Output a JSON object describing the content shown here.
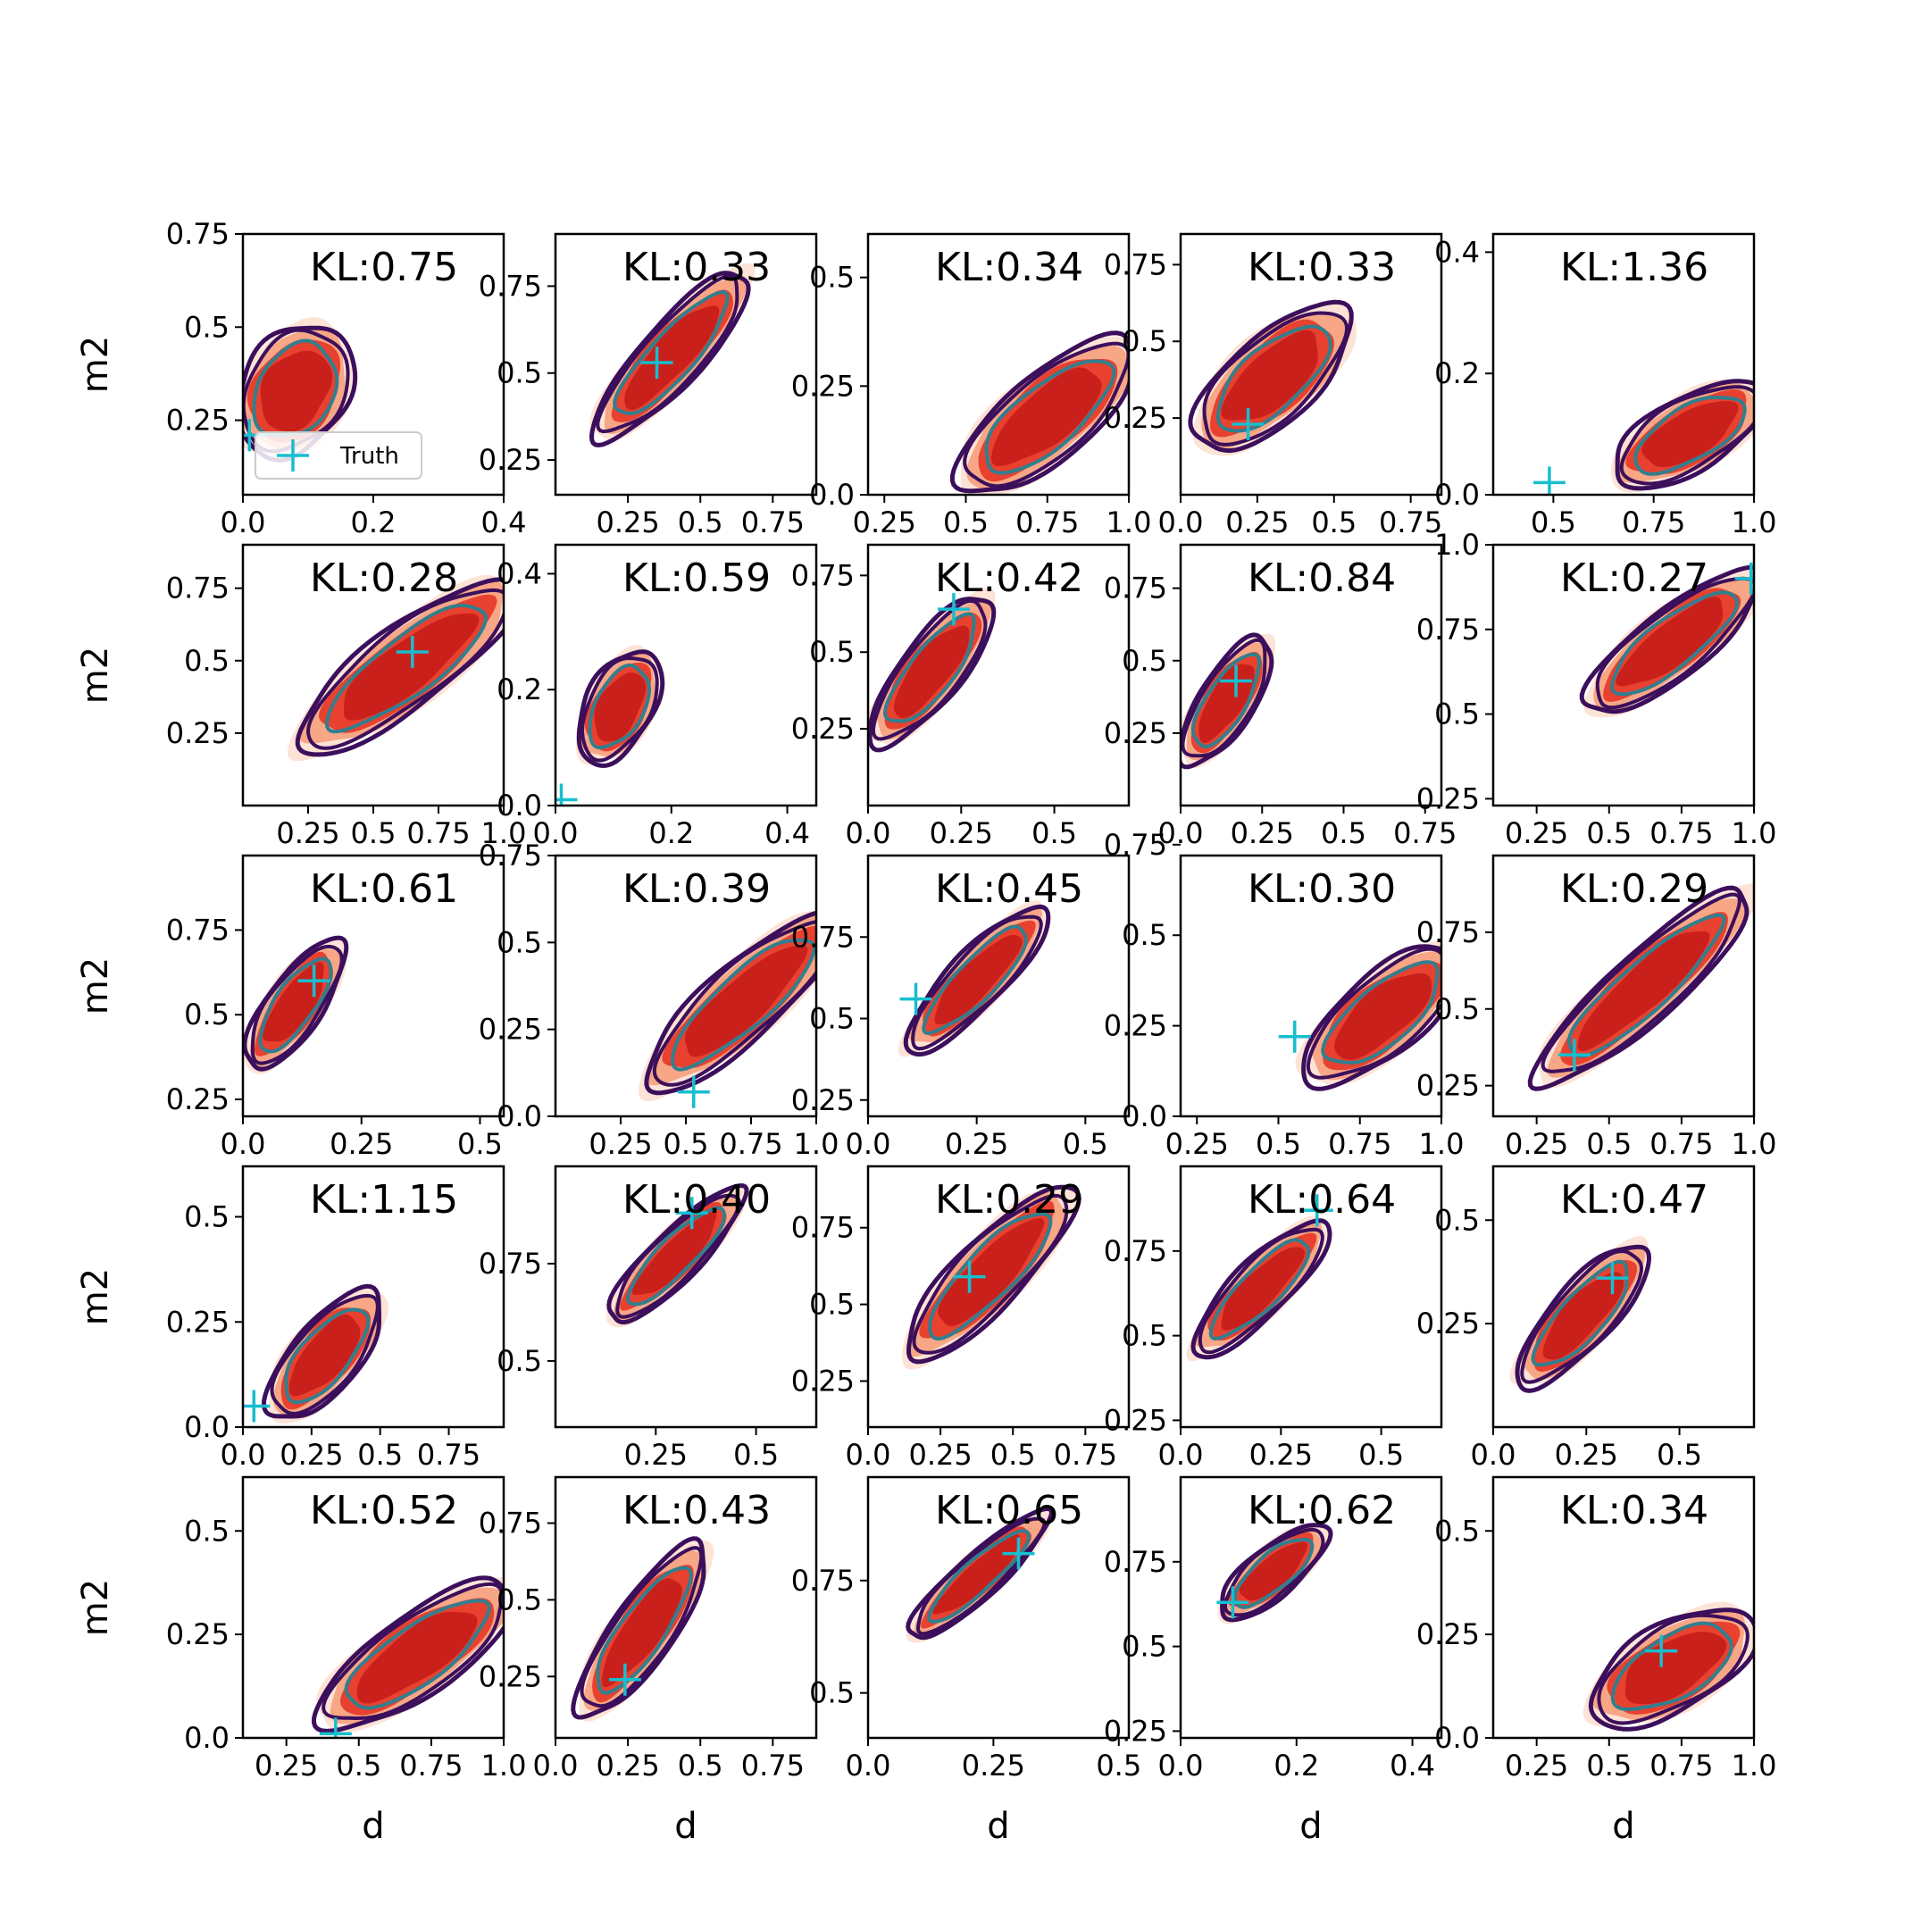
{
  "chart_data": {
    "type": "contour-grid",
    "rows": 5,
    "cols": 5,
    "xlabel": "d",
    "ylabel": "m2",
    "legend": {
      "label": "Truth",
      "marker": "+",
      "placement": "lower-left",
      "panel": 0
    },
    "colors": {
      "fill_outer": "#fde3d6",
      "fill_mid": "#f7a686",
      "fill_inner": "#e8412f",
      "fill_core": "#c9201c",
      "contour_outer": "#3c0f5c",
      "contour_inner": "#317f8f",
      "truth": "#17becf"
    },
    "panels": [
      {
        "kl": "KL:0.75",
        "xlim": [
          0.0,
          0.4
        ],
        "xticks": [
          0.0,
          0.2,
          0.4
        ],
        "ylim": [
          0.05,
          0.75
        ],
        "yticks": [
          0.25,
          0.5,
          0.75
        ],
        "truth": [
          0.01,
          0.21
        ],
        "center": [
          0.08,
          0.33
        ],
        "angle": 58,
        "rx": 0.23,
        "ry": 0.17,
        "showXlabel": false,
        "showYlabel": true
      },
      {
        "kl": "KL:0.33",
        "xlim": [
          0.0,
          0.9
        ],
        "xticks": [
          0.25,
          0.5,
          0.75
        ],
        "ylim": [
          0.15,
          0.9
        ],
        "yticks": [
          0.25,
          0.5,
          0.75
        ],
        "truth": [
          0.35,
          0.53
        ],
        "center": [
          0.4,
          0.55
        ],
        "angle": 48,
        "rx": 0.36,
        "ry": 0.1,
        "showXlabel": false,
        "showYlabel": false
      },
      {
        "kl": "KL:0.34",
        "xlim": [
          0.2,
          1.0
        ],
        "xticks": [
          0.25,
          0.5,
          0.75,
          1.0
        ],
        "ylim": [
          0.0,
          0.6
        ],
        "yticks": [
          0.0,
          0.25,
          0.5
        ],
        "truth": null,
        "center": [
          0.75,
          0.18
        ],
        "angle": 40,
        "rx": 0.36,
        "ry": 0.14,
        "showXlabel": false,
        "showYlabel": false
      },
      {
        "kl": "KL:0.33",
        "xlim": [
          0.0,
          0.85
        ],
        "xticks": [
          0.0,
          0.25,
          0.5,
          0.75
        ],
        "ylim": [
          0.0,
          0.85
        ],
        "yticks": [
          0.25,
          0.5,
          0.75
        ],
        "truth": [
          0.22,
          0.23
        ],
        "center": [
          0.3,
          0.38
        ],
        "angle": 42,
        "rx": 0.32,
        "ry": 0.14,
        "showXlabel": false,
        "showYlabel": false
      },
      {
        "kl": "KL:1.36",
        "xlim": [
          0.35,
          1.0
        ],
        "xticks": [
          0.5,
          0.75,
          1.0
        ],
        "ylim": [
          0.0,
          0.43
        ],
        "yticks": [
          0.0,
          0.2,
          0.4
        ],
        "truth": [
          0.49,
          0.02
        ],
        "center": [
          0.84,
          0.1
        ],
        "angle": 30,
        "rx": 0.28,
        "ry": 0.12,
        "showXlabel": false,
        "showYlabel": false
      },
      {
        "kl": "KL:0.28",
        "xlim": [
          0.0,
          1.0
        ],
        "xticks": [
          0.25,
          0.5,
          0.75,
          1.0
        ],
        "ylim": [
          0.0,
          0.9
        ],
        "yticks": [
          0.25,
          0.5,
          0.75
        ],
        "truth": [
          0.65,
          0.53
        ],
        "center": [
          0.63,
          0.48
        ],
        "angle": 37,
        "rx": 0.44,
        "ry": 0.13,
        "showXlabel": false,
        "showYlabel": true
      },
      {
        "kl": "KL:0.59",
        "xlim": [
          0.0,
          0.45
        ],
        "xticks": [
          0.0,
          0.2,
          0.4
        ],
        "ylim": [
          0.0,
          0.45
        ],
        "yticks": [
          0.0,
          0.2,
          0.4
        ],
        "truth": [
          0.01,
          0.01
        ],
        "center": [
          0.11,
          0.17
        ],
        "angle": 62,
        "rx": 0.2,
        "ry": 0.11,
        "showXlabel": false,
        "showYlabel": false
      },
      {
        "kl": "KL:0.42",
        "xlim": [
          0.0,
          0.7
        ],
        "xticks": [
          0.0,
          0.25,
          0.5
        ],
        "ylim": [
          0.0,
          0.85
        ],
        "yticks": [
          0.25,
          0.5,
          0.75
        ],
        "truth": [
          0.23,
          0.64
        ],
        "center": [
          0.17,
          0.44
        ],
        "angle": 52,
        "rx": 0.3,
        "ry": 0.1,
        "showXlabel": false,
        "showYlabel": false
      },
      {
        "kl": "KL:0.84",
        "xlim": [
          0.0,
          0.8
        ],
        "xticks": [
          0.0,
          0.25,
          0.5,
          0.75
        ],
        "ylim": [
          0.0,
          0.9
        ],
        "yticks": [
          0.25,
          0.5,
          0.75
        ],
        "truth": [
          0.17,
          0.43
        ],
        "center": [
          0.14,
          0.36
        ],
        "angle": 58,
        "rx": 0.24,
        "ry": 0.09,
        "showXlabel": false,
        "showYlabel": false
      },
      {
        "kl": "KL:0.27",
        "xlim": [
          0.1,
          1.0
        ],
        "xticks": [
          0.25,
          0.5,
          0.75,
          1.0
        ],
        "ylim": [
          0.23,
          1.0
        ],
        "yticks": [
          0.25,
          0.5,
          0.75,
          1.0
        ],
        "truth": [
          0.99,
          0.9
        ],
        "center": [
          0.72,
          0.71
        ],
        "angle": 38,
        "rx": 0.35,
        "ry": 0.11,
        "showXlabel": false,
        "showYlabel": false
      },
      {
        "kl": "KL:0.61",
        "xlim": [
          0.0,
          0.55
        ],
        "xticks": [
          0.0,
          0.25,
          0.5
        ],
        "ylim": [
          0.2,
          0.97
        ],
        "yticks": [
          0.25,
          0.5,
          0.75
        ],
        "truth": [
          0.15,
          0.6
        ],
        "center": [
          0.11,
          0.53
        ],
        "angle": 55,
        "rx": 0.25,
        "ry": 0.09,
        "showXlabel": false,
        "showYlabel": true
      },
      {
        "kl": "KL:0.39",
        "xlim": [
          0.0,
          1.0
        ],
        "xticks": [
          0.25,
          0.5,
          0.75,
          1.0
        ],
        "ylim": [
          0.0,
          0.75
        ],
        "yticks": [
          0.0,
          0.25,
          0.5,
          0.75
        ],
        "truth": [
          0.53,
          0.07
        ],
        "center": [
          0.72,
          0.33
        ],
        "angle": 42,
        "rx": 0.42,
        "ry": 0.12,
        "showXlabel": false,
        "showYlabel": false
      },
      {
        "kl": "KL:0.45",
        "xlim": [
          0.0,
          0.6
        ],
        "xticks": [
          0.0,
          0.25,
          0.5
        ],
        "ylim": [
          0.2,
          1.0
        ],
        "yticks": [
          0.25,
          0.5,
          0.75
        ],
        "truth": [
          0.11,
          0.56
        ],
        "center": [
          0.25,
          0.62
        ],
        "angle": 46,
        "rx": 0.32,
        "ry": 0.09,
        "showXlabel": false,
        "showYlabel": false
      },
      {
        "kl": "KL:0.30",
        "xlim": [
          0.2,
          1.0
        ],
        "xticks": [
          0.25,
          0.5,
          0.75,
          1.0
        ],
        "ylim": [
          0.0,
          0.72
        ],
        "yticks": [
          0.0,
          0.25,
          0.5,
          0.75
        ],
        "truth": [
          0.55,
          0.22
        ],
        "center": [
          0.82,
          0.28
        ],
        "angle": 40,
        "rx": 0.32,
        "ry": 0.13,
        "showXlabel": false,
        "showYlabel": false
      },
      {
        "kl": "KL:0.29",
        "xlim": [
          0.1,
          1.0
        ],
        "xticks": [
          0.25,
          0.5,
          0.75,
          1.0
        ],
        "ylim": [
          0.15,
          1.0
        ],
        "yticks": [
          0.25,
          0.5,
          0.75
        ],
        "truth": [
          0.38,
          0.35
        ],
        "center": [
          0.62,
          0.57
        ],
        "angle": 42,
        "rx": 0.46,
        "ry": 0.11,
        "showXlabel": false,
        "showYlabel": false
      },
      {
        "kl": "KL:1.15",
        "xlim": [
          0.0,
          0.95
        ],
        "xticks": [
          0.0,
          0.25,
          0.5,
          0.75
        ],
        "ylim": [
          0.0,
          0.62
        ],
        "yticks": [
          0.0,
          0.25,
          0.5
        ],
        "truth": [
          0.04,
          0.05
        ],
        "center": [
          0.3,
          0.17
        ],
        "angle": 50,
        "rx": 0.26,
        "ry": 0.11,
        "showXlabel": false,
        "showYlabel": true
      },
      {
        "kl": "KL:0.40",
        "xlim": [
          0.0,
          0.65
        ],
        "xticks": [
          0.25,
          0.5
        ],
        "ylim": [
          0.33,
          1.0
        ],
        "yticks": [
          0.5,
          0.75
        ],
        "truth": [
          0.34,
          0.88
        ],
        "center": [
          0.3,
          0.77
        ],
        "angle": 45,
        "rx": 0.3,
        "ry": 0.08,
        "showXlabel": false,
        "showYlabel": false
      },
      {
        "kl": "KL:0.29",
        "xlim": [
          0.0,
          0.9
        ],
        "xticks": [
          0.0,
          0.25,
          0.5,
          0.75
        ],
        "ylim": [
          0.1,
          0.95
        ],
        "yticks": [
          0.25,
          0.5,
          0.75
        ],
        "truth": [
          0.35,
          0.59
        ],
        "center": [
          0.42,
          0.6
        ],
        "angle": 46,
        "rx": 0.38,
        "ry": 0.11,
        "showXlabel": false,
        "showYlabel": false
      },
      {
        "kl": "KL:0.64",
        "xlim": [
          0.0,
          0.65
        ],
        "xticks": [
          0.0,
          0.25,
          0.5
        ],
        "ylim": [
          0.23,
          1.0
        ],
        "yticks": [
          0.25,
          0.5,
          0.75
        ],
        "truth": [
          0.34,
          0.87
        ],
        "center": [
          0.2,
          0.64
        ],
        "angle": 45,
        "rx": 0.3,
        "ry": 0.09,
        "showXlabel": false,
        "showYlabel": false
      },
      {
        "kl": "KL:0.47",
        "xlim": [
          0.0,
          0.7
        ],
        "xticks": [
          0.0,
          0.25,
          0.5
        ],
        "ylim": [
          0.0,
          0.63
        ],
        "yticks": [
          0.25,
          0.5
        ],
        "truth": [
          0.32,
          0.36
        ],
        "center": [
          0.24,
          0.27
        ],
        "angle": 48,
        "rx": 0.3,
        "ry": 0.1,
        "showXlabel": false,
        "showYlabel": false
      },
      {
        "kl": "KL:0.52",
        "xlim": [
          0.1,
          1.0
        ],
        "xticks": [
          0.25,
          0.5,
          0.75,
          1.0
        ],
        "ylim": [
          0.0,
          0.63
        ],
        "yticks": [
          0.0,
          0.25,
          0.5
        ],
        "truth": [
          0.42,
          0.01
        ],
        "center": [
          0.7,
          0.2
        ],
        "angle": 35,
        "rx": 0.38,
        "ry": 0.13,
        "showXlabel": true,
        "showYlabel": true
      },
      {
        "kl": "KL:0.43",
        "xlim": [
          0.0,
          0.9
        ],
        "xticks": [
          0.0,
          0.25,
          0.5,
          0.75
        ],
        "ylim": [
          0.05,
          0.9
        ],
        "yticks": [
          0.25,
          0.5,
          0.75
        ],
        "truth": [
          0.24,
          0.24
        ],
        "center": [
          0.3,
          0.4
        ],
        "angle": 55,
        "rx": 0.34,
        "ry": 0.1,
        "showXlabel": true,
        "showYlabel": false
      },
      {
        "kl": "KL:0.65",
        "xlim": [
          0.0,
          0.52
        ],
        "xticks": [
          0.0,
          0.25,
          0.5
        ],
        "ylim": [
          0.4,
          0.98
        ],
        "yticks": [
          0.5,
          0.75
        ],
        "truth": [
          0.3,
          0.81
        ],
        "center": [
          0.22,
          0.76
        ],
        "angle": 42,
        "rx": 0.3,
        "ry": 0.07,
        "showXlabel": true,
        "showYlabel": false
      },
      {
        "kl": "KL:0.62",
        "xlim": [
          0.0,
          0.45
        ],
        "xticks": [
          0.0,
          0.2,
          0.4
        ],
        "ylim": [
          0.23,
          1.0
        ],
        "yticks": [
          0.25,
          0.5,
          0.75
        ],
        "truth": [
          0.09,
          0.63
        ],
        "center": [
          0.16,
          0.72
        ],
        "angle": 40,
        "rx": 0.22,
        "ry": 0.08,
        "showXlabel": true,
        "showYlabel": false
      },
      {
        "kl": "KL:0.34",
        "xlim": [
          0.1,
          1.0
        ],
        "xticks": [
          0.25,
          0.5,
          0.75,
          1.0
        ],
        "ylim": [
          0.0,
          0.63
        ],
        "yticks": [
          0.0,
          0.25,
          0.5
        ],
        "truth": [
          0.68,
          0.21
        ],
        "center": [
          0.72,
          0.17
        ],
        "angle": 30,
        "rx": 0.3,
        "ry": 0.14,
        "showXlabel": true,
        "showYlabel": false
      }
    ]
  }
}
